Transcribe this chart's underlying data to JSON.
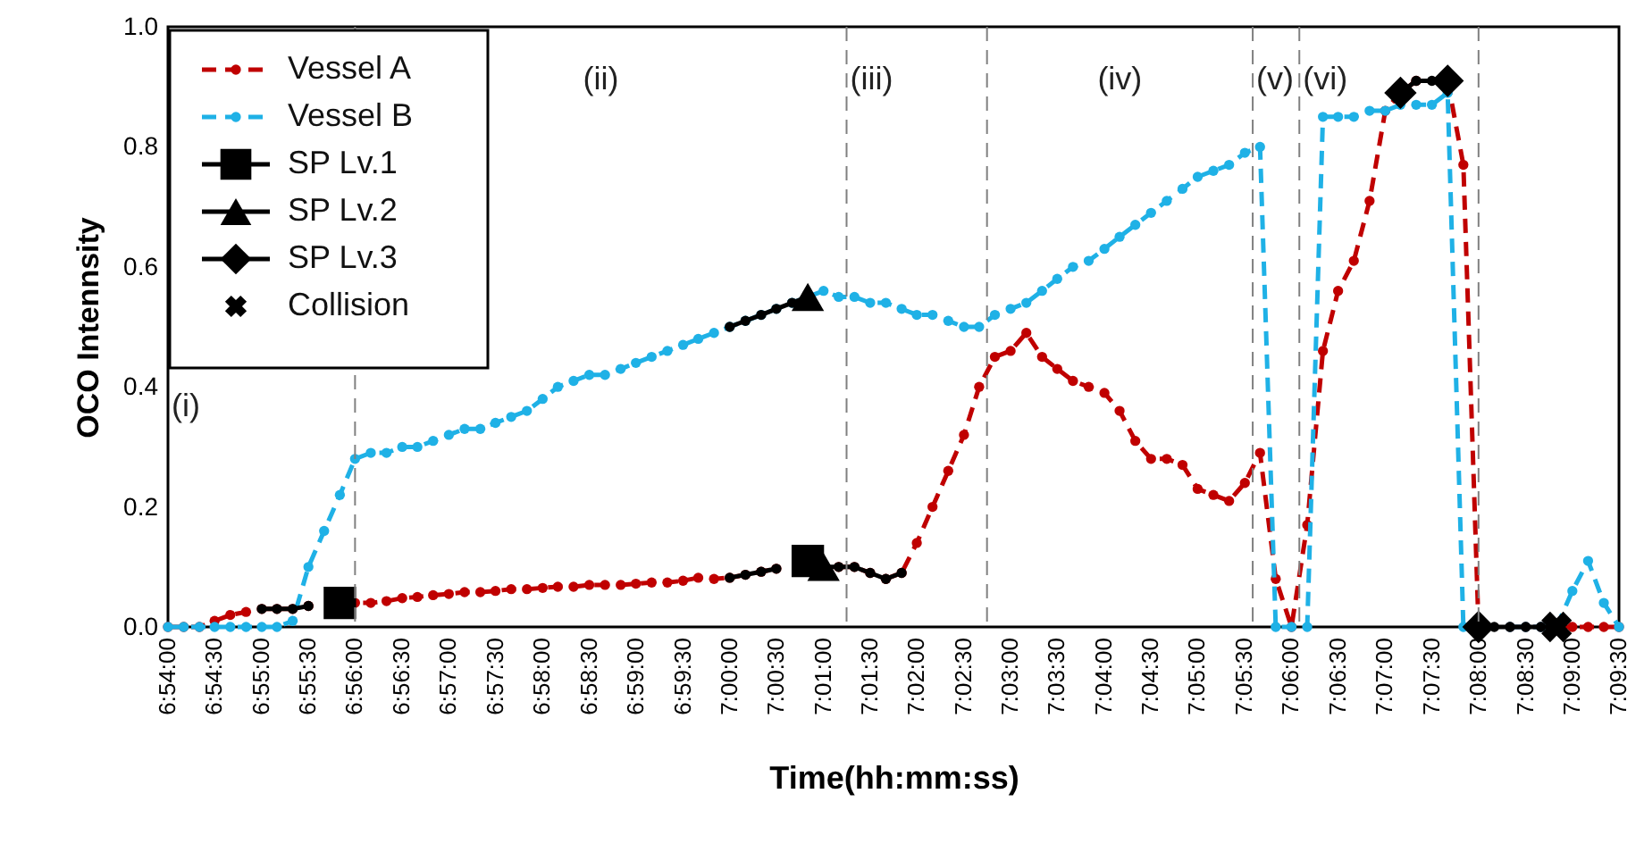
{
  "chart_data": {
    "type": "line",
    "xlabel": "Time(hh:mm:ss)",
    "ylabel": "OCO Intennsity",
    "x": [
      6.9,
      6.9028,
      6.9056,
      6.9083,
      6.9111,
      6.9139,
      6.9167,
      6.9194,
      6.9222,
      6.925,
      6.9278,
      6.9306,
      6.9333,
      6.9361,
      6.9389,
      6.9417,
      6.9444,
      6.9472,
      6.95,
      6.9528,
      6.9556,
      6.9583,
      6.9611,
      6.9639,
      6.9667,
      6.9694,
      6.9722,
      6.975,
      6.9778,
      6.9806,
      6.9833,
      6.9861,
      6.9889,
      6.9917,
      6.9944,
      6.9972,
      7.0,
      7.0028,
      7.0056,
      7.0083,
      7.0111,
      7.0139,
      7.0167,
      7.0194,
      7.0222,
      7.025,
      7.0278,
      7.0306,
      7.0333,
      7.0361,
      7.0389,
      7.0417,
      7.0444,
      7.0472,
      7.05,
      7.0528,
      7.0556,
      7.0583,
      7.0611,
      7.0639,
      7.0667,
      7.0694,
      7.0722,
      7.075,
      7.0778,
      7.0806,
      7.0833,
      7.0861,
      7.0889,
      7.0917,
      7.0944,
      7.0972,
      7.1,
      7.1028,
      7.1056,
      7.1083,
      7.1111,
      7.1139,
      7.1167,
      7.1194,
      7.1222,
      7.125,
      7.1278,
      7.1306,
      7.1333,
      7.1361,
      7.1389,
      7.1417,
      7.1444,
      7.1472,
      7.15,
      7.1528,
      7.1556,
      7.1583
    ],
    "series": [
      {
        "name": "Vessel A",
        "color": "#c00000",
        "line_style": "dashed",
        "marker": "circle",
        "values": [
          0,
          0,
          0,
          0.01,
          0.02,
          0.025,
          0.03,
          0.03,
          0.03,
          0.035,
          null,
          0.04,
          0.04,
          0.04,
          0.043,
          0.048,
          0.05,
          0.053,
          0.055,
          0.058,
          0.058,
          0.06,
          0.063,
          0.063,
          0.065,
          0.067,
          0.067,
          0.07,
          0.07,
          0.07,
          0.072,
          0.074,
          0.074,
          0.077,
          0.082,
          0.08,
          0.082,
          0.087,
          0.092,
          0.097,
          null,
          null,
          null,
          0.1,
          0.1,
          0.09,
          0.08,
          0.09,
          0.14,
          0.2,
          0.26,
          0.32,
          0.4,
          0.45,
          0.46,
          0.49,
          0.45,
          0.43,
          0.41,
          0.4,
          0.39,
          0.36,
          0.31,
          0.28,
          0.28,
          0.27,
          0.23,
          0.22,
          0.21,
          0.24,
          0.29,
          0.08,
          0,
          0.17,
          0.46,
          0.56,
          0.61,
          0.71,
          0.86,
          0.89,
          0.91,
          null,
          0.91,
          0.77,
          0,
          null,
          0,
          0,
          0,
          0,
          0,
          0,
          0,
          0
        ]
      },
      {
        "name": "Vessel B",
        "color": "#1fb1e6",
        "line_style": "dashed",
        "marker": "circle",
        "values": [
          0,
          0,
          0,
          0,
          0,
          0,
          0,
          0,
          0.01,
          0.1,
          0.16,
          0.22,
          0.28,
          0.29,
          0.29,
          0.3,
          0.3,
          0.31,
          0.32,
          0.33,
          0.33,
          0.34,
          0.35,
          0.36,
          0.38,
          0.4,
          0.41,
          0.42,
          0.42,
          0.43,
          0.44,
          0.45,
          0.46,
          0.47,
          0.48,
          0.49,
          0.5,
          0.51,
          0.52,
          0.53,
          0.54,
          0.55,
          0.56,
          0.55,
          0.55,
          0.54,
          0.54,
          0.53,
          0.52,
          0.52,
          0.51,
          0.5,
          0.5,
          0.52,
          0.53,
          0.54,
          0.56,
          0.58,
          0.6,
          0.61,
          0.63,
          0.65,
          0.67,
          0.69,
          0.71,
          0.73,
          0.75,
          0.76,
          0.77,
          0.79,
          0.8,
          0,
          0,
          0,
          0.85,
          0.85,
          0.85,
          0.86,
          0.86,
          0.87,
          0.87,
          0.87,
          0.89,
          0,
          0,
          null,
          0,
          0,
          0,
          0,
          0.06,
          0.11,
          0.04,
          0
        ]
      },
      {
        "color": "#000000",
        "line_style": "solid",
        "marker": "circle",
        "x": [
          6.9167,
          6.9194,
          6.9222,
          6.925
        ],
        "values": [
          0.03,
          0.03,
          0.03,
          0.035
        ]
      },
      {
        "color": "#000000",
        "line_style": "solid",
        "marker": "circle",
        "x": [
          7.0,
          7.0028,
          7.0056,
          7.0083,
          7.0111,
          7.0139,
          7.0167,
          7.0194,
          7.0222,
          7.025,
          7.0278,
          7.0306
        ],
        "values": [
          0.082,
          0.087,
          0.092,
          0.097,
          null,
          null,
          0.1,
          0.1,
          0.1,
          0.09,
          0.08,
          0.09
        ]
      },
      {
        "color": "#000000",
        "line_style": "solid",
        "marker": "circle",
        "x": [
          7.1194,
          7.1222,
          7.125,
          7.1278
        ],
        "values": [
          0.89,
          0.91,
          0.91,
          0.91
        ]
      },
      {
        "color": "#000000",
        "line_style": "solid",
        "marker": "circle",
        "x": [
          7.1333,
          7.1361,
          7.1389,
          7.1417,
          7.1444,
          7.1472
        ],
        "values": [
          0,
          0,
          0,
          0,
          0,
          0
        ]
      },
      {
        "color": "#000000",
        "line_style": "solid",
        "marker": "circle",
        "x": [
          7.0,
          7.0028,
          7.0056,
          7.0083,
          7.0111,
          7.0139
        ],
        "values": [
          0.5,
          0.51,
          0.52,
          0.53,
          0.54,
          0.55
        ]
      },
      {
        "name": "SP Lv.1",
        "type": "scatter",
        "color": "#000000",
        "marker": "square",
        "x": [
          6.9306,
          7.0139
        ],
        "values": [
          0.04,
          0.11
        ]
      },
      {
        "name": "SP Lv.2",
        "type": "scatter",
        "color": "#000000",
        "marker": "triangle",
        "x": [
          7.0139,
          7.0167
        ],
        "values": [
          0.55,
          0.1
        ]
      },
      {
        "name": "SP Lv.3",
        "type": "scatter",
        "color": "#000000",
        "marker": "diamond",
        "x": [
          7.1194,
          7.1278,
          7.1333
        ],
        "values": [
          0.89,
          0.91,
          0
        ]
      },
      {
        "name": "Collision",
        "type": "scatter",
        "color": "#000000",
        "marker": "cross",
        "x": [
          7.1472
        ],
        "values": [
          0
        ]
      }
    ],
    "xlim": [
      6.9,
      7.1583
    ],
    "xticks": [
      {
        "value": 6.9,
        "label": "6:54:00"
      },
      {
        "value": 6.9083,
        "label": "6:54:30"
      },
      {
        "value": 6.9167,
        "label": "6:55:00"
      },
      {
        "value": 6.925,
        "label": "6:55:30"
      },
      {
        "value": 6.9333,
        "label": "6:56:00"
      },
      {
        "value": 6.9417,
        "label": "6:56:30"
      },
      {
        "value": 6.95,
        "label": "6:57:00"
      },
      {
        "value": 6.9583,
        "label": "6:57:30"
      },
      {
        "value": 6.9667,
        "label": "6:58:00"
      },
      {
        "value": 6.975,
        "label": "6:58:30"
      },
      {
        "value": 6.9833,
        "label": "6:59:00"
      },
      {
        "value": 6.9917,
        "label": "6:59:30"
      },
      {
        "value": 7.0,
        "label": "7:00:00"
      },
      {
        "value": 7.0083,
        "label": "7:00:30"
      },
      {
        "value": 7.0167,
        "label": "7:01:00"
      },
      {
        "value": 7.025,
        "label": "7:01:30"
      },
      {
        "value": 7.0333,
        "label": "7:02:00"
      },
      {
        "value": 7.0417,
        "label": "7:02:30"
      },
      {
        "value": 7.05,
        "label": "7:03:00"
      },
      {
        "value": 7.0583,
        "label": "7:03:30"
      },
      {
        "value": 7.0667,
        "label": "7:04:00"
      },
      {
        "value": 7.075,
        "label": "7:04:30"
      },
      {
        "value": 7.0833,
        "label": "7:05:00"
      },
      {
        "value": 7.0917,
        "label": "7:05:30"
      },
      {
        "value": 7.1,
        "label": "7:06:00"
      },
      {
        "value": 7.1083,
        "label": "7:06:30"
      },
      {
        "value": 7.1167,
        "label": "7:07:00"
      },
      {
        "value": 7.125,
        "label": "7:07:30"
      },
      {
        "value": 7.1333,
        "label": "7:08:00"
      },
      {
        "value": 7.1417,
        "label": "7:08:30"
      },
      {
        "value": 7.15,
        "label": "7:09:00"
      },
      {
        "value": 7.1583,
        "label": "7:09:30"
      }
    ],
    "ylim": [
      0,
      1.0
    ],
    "yticks": [
      {
        "value": 0,
        "label": "0.0"
      },
      0.2,
      0.4,
      0.6,
      0.8,
      {
        "value": 1.0,
        "label": "1.0"
      }
    ],
    "ref_lines": [
      {
        "axis": "x",
        "value": 6.9333,
        "color": "#808080",
        "line_style": "dashed"
      },
      {
        "axis": "x",
        "value": 7.0208,
        "color": "#808080",
        "line_style": "dashed"
      },
      {
        "axis": "x",
        "value": 7.0458,
        "color": "#808080",
        "line_style": "dashed"
      },
      {
        "axis": "x",
        "value": 7.0931,
        "color": "#808080",
        "line_style": "dashed"
      },
      {
        "axis": "x",
        "value": 7.1014,
        "color": "#808080",
        "line_style": "dashed"
      },
      {
        "axis": "x",
        "value": 7.1333,
        "color": "#808080",
        "line_style": "dashed"
      }
    ],
    "annotations": [
      "(i)",
      "(ii)",
      "(iii)",
      "(iv)",
      "(v)",
      "(vi)"
    ],
    "legend": "top left"
  }
}
